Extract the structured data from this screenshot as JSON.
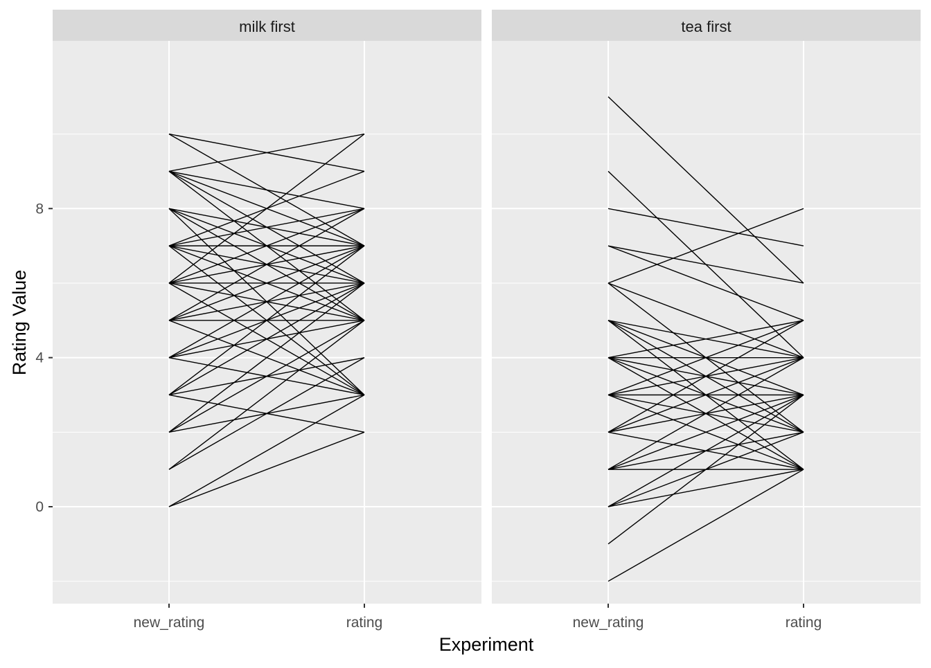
{
  "chart_data": {
    "type": "line",
    "subtype": "faceted slope chart (paired ratings)",
    "xlabel": "Experiment",
    "ylabel": "Rating Value",
    "x_categories": [
      "new_rating",
      "rating"
    ],
    "y_ticks": [
      0,
      4,
      8
    ],
    "ylim": [
      -2.6,
      12.5
    ],
    "grid": true,
    "panel_background": "#EBEBEB",
    "strip_background": "#D9D9D9",
    "line_color": "#000000",
    "facets": [
      {
        "label": "milk first",
        "pairs": [
          [
            10,
            9
          ],
          [
            10,
            7
          ],
          [
            9,
            10
          ],
          [
            9,
            8
          ],
          [
            9,
            7
          ],
          [
            9,
            6
          ],
          [
            9,
            5
          ],
          [
            8,
            7
          ],
          [
            8,
            6
          ],
          [
            8,
            5
          ],
          [
            8,
            3
          ],
          [
            7,
            9
          ],
          [
            7,
            8
          ],
          [
            7,
            7
          ],
          [
            7,
            6
          ],
          [
            7,
            5
          ],
          [
            7,
            3
          ],
          [
            6,
            10
          ],
          [
            6,
            8
          ],
          [
            6,
            7
          ],
          [
            6,
            6
          ],
          [
            6,
            5
          ],
          [
            6,
            3
          ],
          [
            5,
            8
          ],
          [
            5,
            7
          ],
          [
            5,
            6
          ],
          [
            5,
            5
          ],
          [
            5,
            3
          ],
          [
            4,
            7
          ],
          [
            4,
            6
          ],
          [
            4,
            5
          ],
          [
            4,
            3
          ],
          [
            3,
            7
          ],
          [
            3,
            6
          ],
          [
            3,
            4
          ],
          [
            3,
            2
          ],
          [
            2,
            6
          ],
          [
            2,
            5
          ],
          [
            2,
            3
          ],
          [
            1,
            5
          ],
          [
            1,
            4
          ],
          [
            0,
            3
          ],
          [
            0,
            2
          ]
        ]
      },
      {
        "label": "tea first",
        "pairs": [
          [
            11,
            6
          ],
          [
            9,
            4
          ],
          [
            8,
            7
          ],
          [
            7,
            6
          ],
          [
            7,
            5
          ],
          [
            6,
            8
          ],
          [
            6,
            4
          ],
          [
            6,
            2
          ],
          [
            5,
            4
          ],
          [
            5,
            3
          ],
          [
            5,
            2
          ],
          [
            5,
            1
          ],
          [
            4,
            5
          ],
          [
            4,
            4
          ],
          [
            4,
            3
          ],
          [
            4,
            2
          ],
          [
            4,
            1
          ],
          [
            3,
            5
          ],
          [
            3,
            4
          ],
          [
            3,
            3
          ],
          [
            3,
            2
          ],
          [
            3,
            1
          ],
          [
            2,
            5
          ],
          [
            2,
            4
          ],
          [
            2,
            3
          ],
          [
            2,
            1
          ],
          [
            1,
            4
          ],
          [
            1,
            3
          ],
          [
            1,
            2
          ],
          [
            1,
            1
          ],
          [
            0,
            3
          ],
          [
            0,
            2
          ],
          [
            0,
            1
          ],
          [
            -1,
            3
          ],
          [
            -2,
            1
          ]
        ]
      }
    ]
  }
}
